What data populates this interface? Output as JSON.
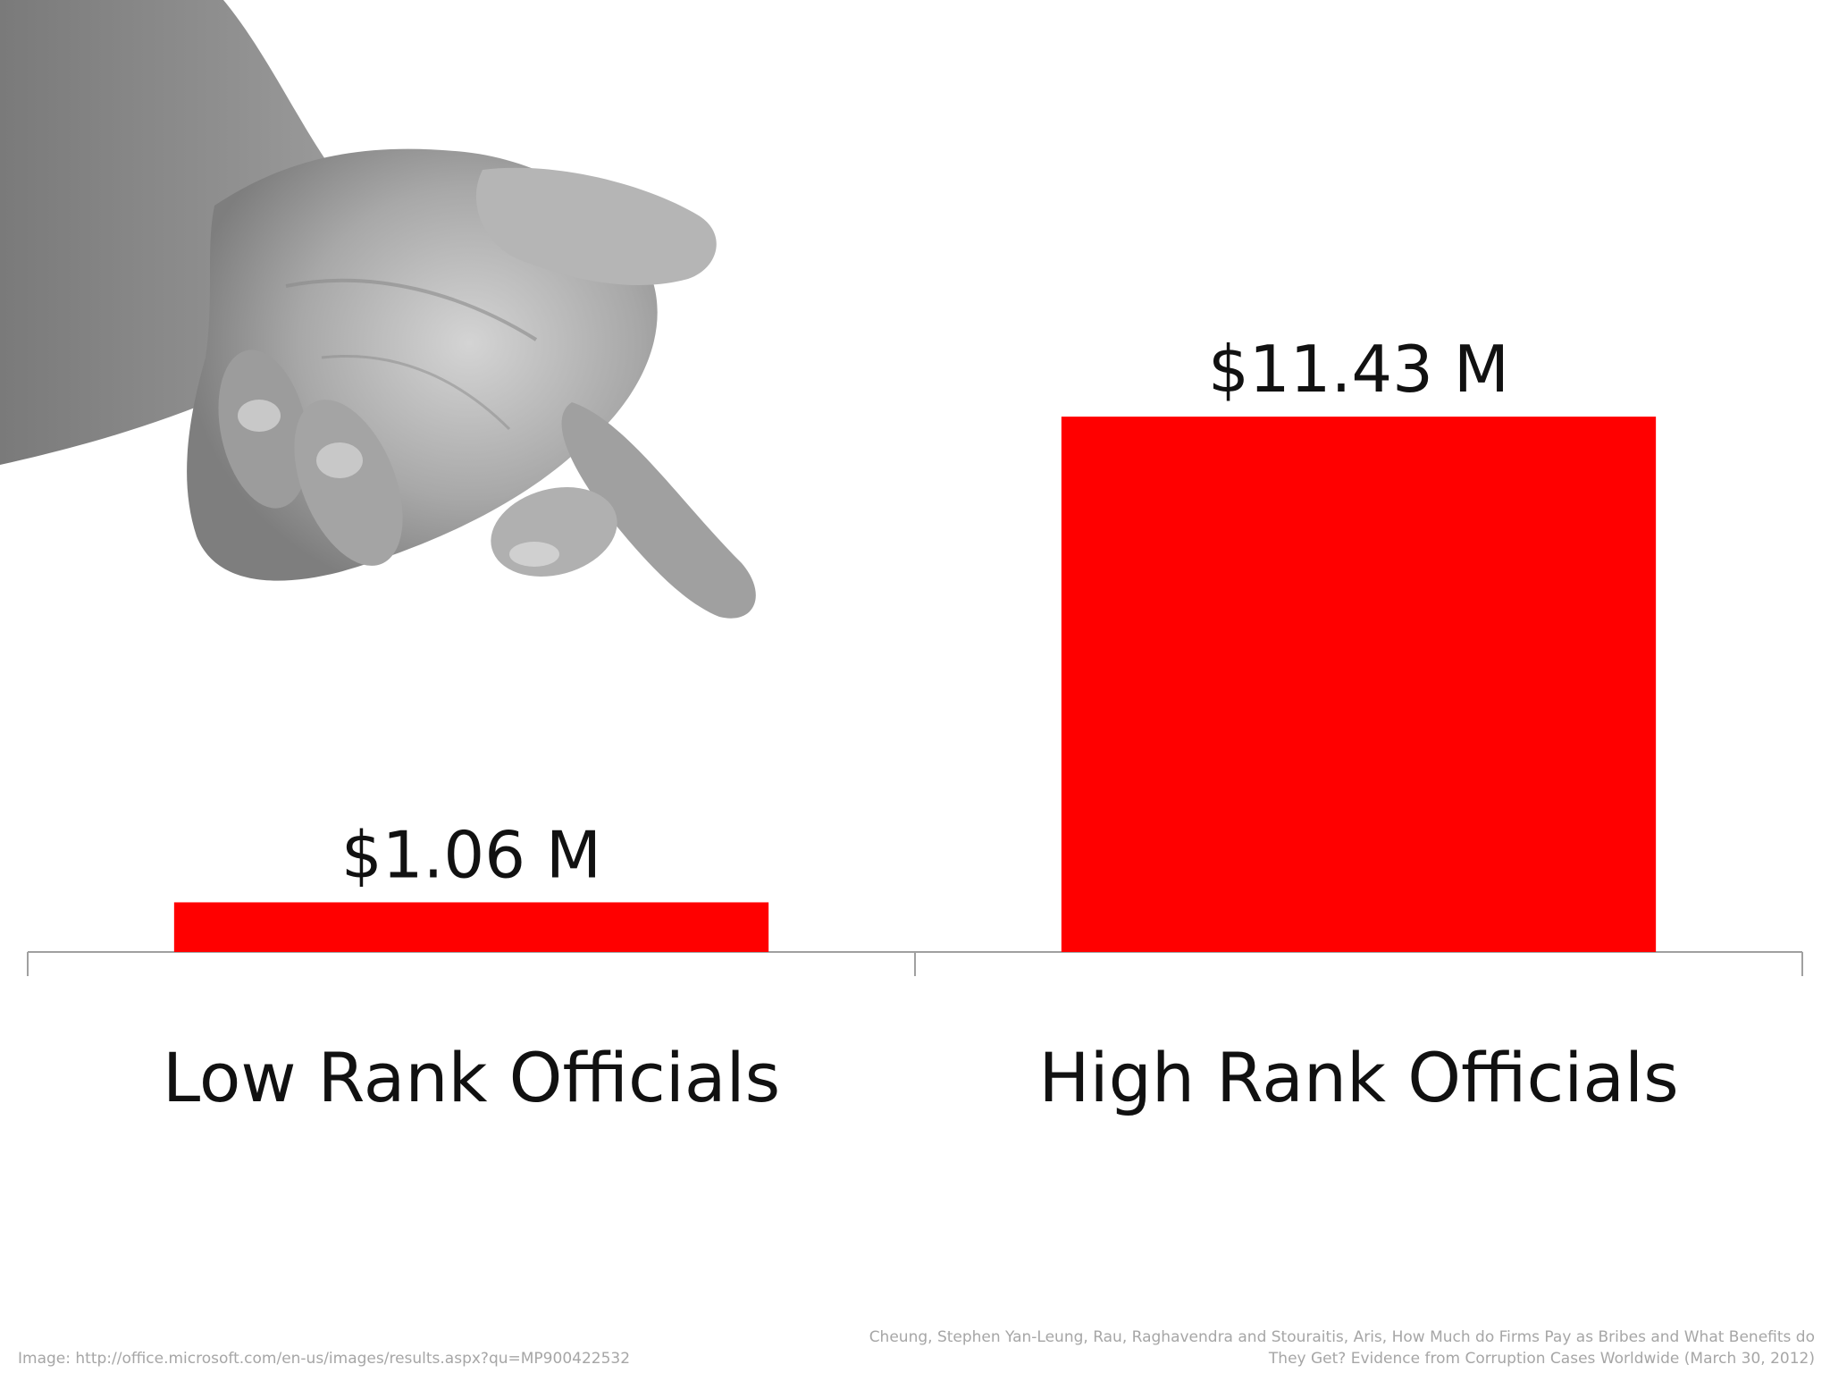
{
  "chart_data": {
    "type": "bar",
    "categories": [
      "Low Rank Officials",
      "High Rank Officials"
    ],
    "values": [
      1.06,
      11.43
    ],
    "value_labels": [
      "$1.06 M",
      "$11.43 M"
    ],
    "title": "",
    "xlabel": "",
    "ylabel": "",
    "ylim": [
      0,
      14.6
    ],
    "grid": false,
    "legend": "none",
    "bar_color": "#ff0000",
    "axis_color": "#a0a0a0"
  },
  "image_credit": "Image: http://office.microsoft.com/en-us/images/results.aspx?qu=MP900422532",
  "source_citation": {
    "line1": "Cheung, Stephen Yan-Leung, Rau, Raghavendra and Stouraitis, Aris, How Much do Firms Pay as Bribes and What Benefits do",
    "line2": "They Get? Evidence from Corruption Cases Worldwide (March 30, 2012)"
  },
  "illustration": {
    "icon": "open-palm-hand-icon",
    "color": "#8c8c8c"
  }
}
